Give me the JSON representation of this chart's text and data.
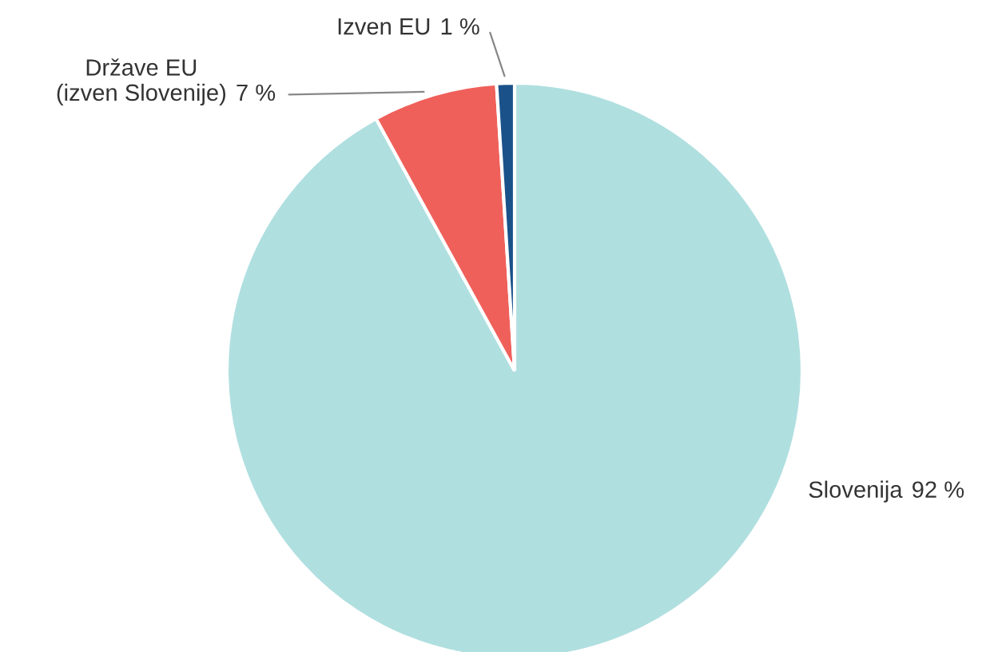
{
  "chart_data": {
    "type": "pie",
    "categories": [
      "Slovenija",
      "Države EU\n(izven Slovenije)",
      "Izven EU"
    ],
    "values": [
      92,
      7,
      1
    ],
    "colors": [
      "#b0dfe0",
      "#f0605a",
      "#1a5189"
    ],
    "value_labels": [
      "92 %",
      "7 %",
      "1 %"
    ],
    "legend": false
  }
}
